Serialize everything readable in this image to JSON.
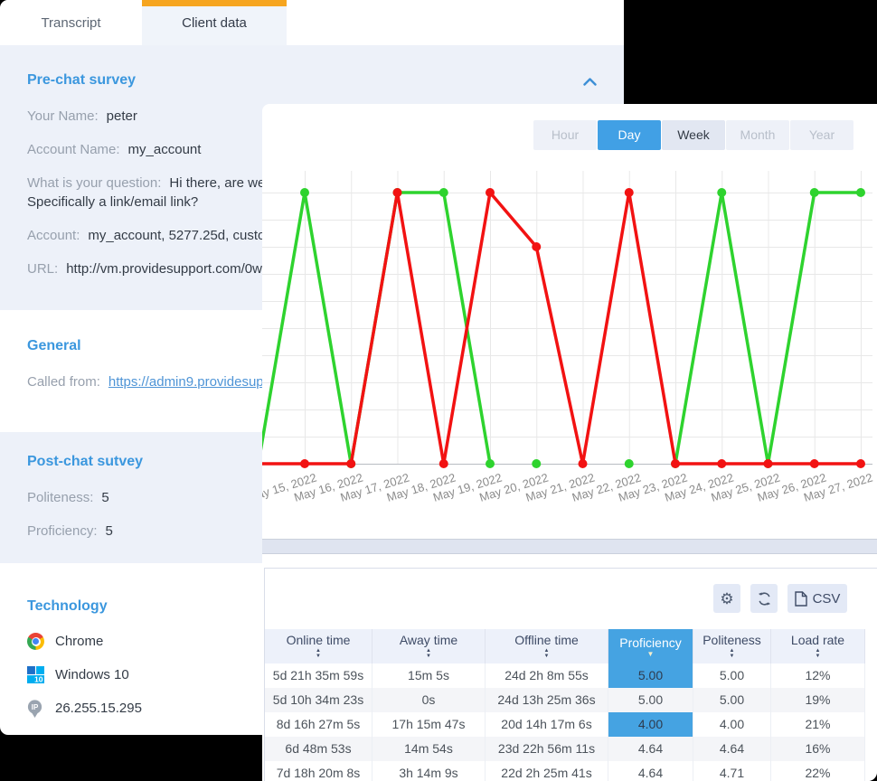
{
  "client_panel": {
    "tabs": [
      {
        "label": "Transcript",
        "active": false
      },
      {
        "label": "Client data",
        "active": true
      }
    ],
    "accent_color": "#F6A51F",
    "sections": {
      "pre_chat": {
        "title": "Pre-chat survey",
        "fields": [
          {
            "label": "Your Name:",
            "value": "peter"
          },
          {
            "label": "Account Name:",
            "value": "my_account"
          },
          {
            "label": "What is your question:",
            "value": "Hi there, are we",
            "value_line2": "Specifically a link/email link?"
          },
          {
            "label": "Account:",
            "value": "my_account, 5277.25d, custor"
          },
          {
            "label": "URL:",
            "value": "http://vm.providesupport.com/0w"
          }
        ]
      },
      "general": {
        "title": "General",
        "fields": [
          {
            "label": "Called from:",
            "value": "https://admin9.providesup",
            "link": true
          }
        ]
      },
      "post_chat": {
        "title": "Post-chat sutvey",
        "fields": [
          {
            "label": "Politeness:",
            "value": "5"
          },
          {
            "label": "Proficiency:",
            "value": "5"
          }
        ]
      },
      "technology": {
        "title": "Technology",
        "items": [
          {
            "icon": "chrome",
            "label": "Chrome"
          },
          {
            "icon": "windows",
            "label": "Windows 10"
          },
          {
            "icon": "ip-pin",
            "label": "26.255.15.295"
          }
        ]
      }
    }
  },
  "analytics_panel": {
    "period_tabs": [
      {
        "label": "Hour",
        "state": "idle"
      },
      {
        "label": "Day",
        "state": "active"
      },
      {
        "label": "Week",
        "state": "hover"
      },
      {
        "label": "Month",
        "state": "idle"
      },
      {
        "label": "Year",
        "state": "idle"
      }
    ],
    "chart_data": {
      "type": "line",
      "x_labels": [
        "May 15, 2022",
        "May 16, 2022",
        "May 17, 2022",
        "May 18, 2022",
        "May 19, 2022",
        "May 20, 2022",
        "May 21, 2022",
        "May 22, 2022",
        "May 23, 2022",
        "May 24, 2022",
        "May 25, 2022",
        "May 26, 2022",
        "May 27, 2022"
      ],
      "ylim": [
        0,
        5
      ],
      "grid": true,
      "legend": "none",
      "series": [
        {
          "name": "green-metric",
          "color": "#2ED32E",
          "values": [
            5,
            0,
            5,
            5,
            0,
            0,
            null,
            0,
            0,
            5,
            0,
            5,
            5
          ],
          "drawn_segments": [
            [
              0,
              4
            ],
            [
              8,
              12
            ]
          ],
          "isolated_points": [
            5,
            7
          ],
          "extends_from_left": true
        },
        {
          "name": "red-metric",
          "color": "#F21212",
          "values": [
            0,
            0,
            5,
            0,
            5,
            4,
            0,
            5,
            0,
            0,
            0,
            0,
            0
          ],
          "drawn_segments": [
            [
              0,
              12
            ]
          ],
          "isolated_points": [],
          "extends_from_left": true
        }
      ]
    },
    "toolbar": {
      "settings_icon": "gear-icon",
      "refresh_icon": "refresh-icon",
      "csv_label": "CSV"
    },
    "table": {
      "columns": [
        {
          "label": "Online time",
          "sort": "both",
          "active": false
        },
        {
          "label": "Away time",
          "sort": "both",
          "active": false
        },
        {
          "label": "Offline  time",
          "sort": "both",
          "active": false
        },
        {
          "label": "Proficiency",
          "sort": "desc",
          "active": true
        },
        {
          "label": "Politeness",
          "sort": "both",
          "active": false
        },
        {
          "label": "Load rate",
          "sort": "both",
          "active": false
        }
      ],
      "rows": [
        {
          "cells": [
            "5d 21h 35m 59s",
            "15m 5s",
            "24d 2h 8m 55s",
            "5.00",
            "5.00",
            "12%"
          ],
          "highlight_proficiency": true
        },
        {
          "cells": [
            "5d 10h 34m 23s",
            "0s",
            "24d 13h 25m 36s",
            "5.00",
            "5.00",
            "19%"
          ],
          "highlight_proficiency": false
        },
        {
          "cells": [
            "8d 16h 27m 5s",
            "17h 15m 47s",
            "20d 14h 17m 6s",
            "4.00",
            "4.00",
            "21%"
          ],
          "highlight_proficiency": true
        },
        {
          "cells": [
            "6d 48m 53s",
            "14m 54s",
            "23d 22h 56m 11s",
            "4.64",
            "4.64",
            "16%"
          ],
          "highlight_proficiency": false
        },
        {
          "cells": [
            "7d 18h 20m 8s",
            "3h 14m 9s",
            "22d 2h 25m 41s",
            "4.64",
            "4.71",
            "22%"
          ],
          "highlight_proficiency": false
        }
      ]
    }
  }
}
